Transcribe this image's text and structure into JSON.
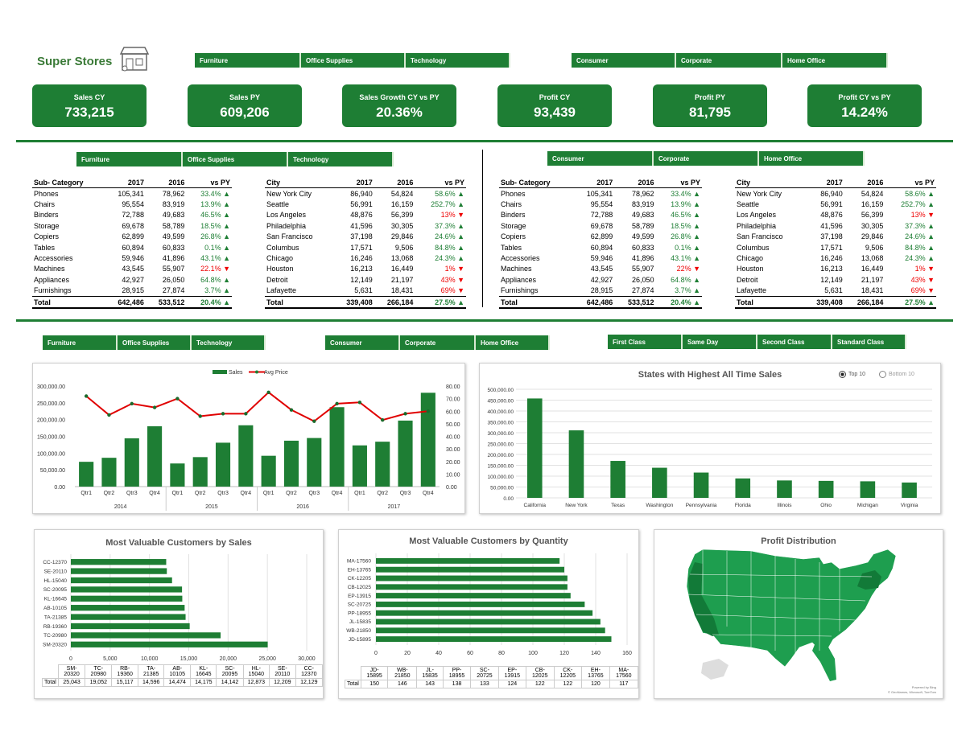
{
  "brand": {
    "title": "Super Stores",
    "icon": "store-icon"
  },
  "colors": {
    "accent": "#1e7e34",
    "line": "#e00000",
    "up": "#1e7e34",
    "down": "#e00000"
  },
  "category_slicer": [
    "Furniture",
    "Office Supplies",
    "Technology"
  ],
  "segment_slicer": [
    "Consumer",
    "Corporate",
    "Home Office"
  ],
  "shipmode_slicer": [
    "First Class",
    "Same Day",
    "Second Class",
    "Standard Class"
  ],
  "kpis": [
    {
      "label": "Sales CY",
      "value": "733,215"
    },
    {
      "label": "Sales PY",
      "value": "609,206"
    },
    {
      "label": "Sales Growth CY vs PY",
      "value": "20.36%"
    },
    {
      "label": "Profit CY",
      "value": "93,439"
    },
    {
      "label": "Profit PY",
      "value": "81,795"
    },
    {
      "label": "Profit CY vs PY",
      "value": "14.24%"
    }
  ],
  "subcat_table": {
    "headers": [
      "Sub- Category",
      "2017",
      "2016",
      "vs PY"
    ],
    "rows": [
      [
        "Phones",
        "105,341",
        "78,962",
        "33.4%",
        "up"
      ],
      [
        "Chairs",
        "95,554",
        "83,919",
        "13.9%",
        "up"
      ],
      [
        "Binders",
        "72,788",
        "49,683",
        "46.5%",
        "up"
      ],
      [
        "Storage",
        "69,678",
        "58,789",
        "18.5%",
        "up"
      ],
      [
        "Copiers",
        "62,899",
        "49,599",
        "26.8%",
        "up"
      ],
      [
        "Tables",
        "60,894",
        "60,833",
        "0.1%",
        "up"
      ],
      [
        "Accessories",
        "59,946",
        "41,896",
        "43.1%",
        "up"
      ],
      [
        "Machines",
        "43,545",
        "55,907",
        "22.1%",
        "down"
      ],
      [
        "Appliances",
        "42,927",
        "26,050",
        "64.8%",
        "up"
      ],
      [
        "Furnishings",
        "28,915",
        "27,874",
        "3.7%",
        "up"
      ]
    ],
    "total": [
      "Total",
      "642,486",
      "533,512",
      "20.4%",
      "up"
    ]
  },
  "subcat_table_b": {
    "headers": [
      "Sub- Category",
      "2017",
      "2016",
      "vs PY"
    ],
    "rows": [
      [
        "Phones",
        "105,341",
        "78,962",
        "33.4%",
        "up"
      ],
      [
        "Chairs",
        "95,554",
        "83,919",
        "13.9%",
        "up"
      ],
      [
        "Binders",
        "72,788",
        "49,683",
        "46.5%",
        "up"
      ],
      [
        "Storage",
        "69,678",
        "58,789",
        "18.5%",
        "up"
      ],
      [
        "Copiers",
        "62,899",
        "49,599",
        "26.8%",
        "up"
      ],
      [
        "Tables",
        "60,894",
        "60,833",
        "0.1%",
        "up"
      ],
      [
        "Accessories",
        "59,946",
        "41,896",
        "43.1%",
        "up"
      ],
      [
        "Machines",
        "43,545",
        "55,907",
        "22%",
        "down"
      ],
      [
        "Appliances",
        "42,927",
        "26,050",
        "64.8%",
        "up"
      ],
      [
        "Furnishings",
        "28,915",
        "27,874",
        "3.7%",
        "up"
      ]
    ],
    "total": [
      "Total",
      "642,486",
      "533,512",
      "20.4%",
      "up"
    ]
  },
  "city_table": {
    "headers": [
      "City",
      "2017",
      "2016",
      "vs PY"
    ],
    "rows": [
      [
        "New York City",
        "86,940",
        "54,824",
        "58.6%",
        "up"
      ],
      [
        "Seattle",
        "56,991",
        "16,159",
        "252.7%",
        "up"
      ],
      [
        "Los Angeles",
        "48,876",
        "56,399",
        "13%",
        "down"
      ],
      [
        "Philadelphia",
        "41,596",
        "30,305",
        "37.3%",
        "up"
      ],
      [
        "San Francisco",
        "37,198",
        "29,846",
        "24.6%",
        "up"
      ],
      [
        "Columbus",
        "17,571",
        "9,506",
        "84.8%",
        "up"
      ],
      [
        "Chicago",
        "16,246",
        "13,068",
        "24.3%",
        "up"
      ],
      [
        "Houston",
        "16,213",
        "16,449",
        "1%",
        "down"
      ],
      [
        "Detroit",
        "12,149",
        "21,197",
        "43%",
        "down"
      ],
      [
        "Lafayette",
        "5,631",
        "18,431",
        "69%",
        "down"
      ]
    ],
    "total": [
      "Total",
      "339,408",
      "266,184",
      "27.5%",
      "up"
    ]
  },
  "combo_chart": {
    "legend": [
      "Sales",
      "Avg Price"
    ],
    "y_left_ticks": [
      "300,000.00",
      "250,000.00",
      "200,000.00",
      "150,000.00",
      "100,000.00",
      "50,000.00",
      "0.00"
    ],
    "y_right_ticks": [
      "80.00",
      "70.00",
      "60.00",
      "50.00",
      "40.00",
      "30.00",
      "20.00",
      "10.00",
      "0.00"
    ],
    "quarters": [
      "Qtr1",
      "Qtr2",
      "Qtr3",
      "Qtr4",
      "Qtr1",
      "Qtr2",
      "Qtr3",
      "Qtr4",
      "Qtr1",
      "Qtr2",
      "Qtr3",
      "Qtr4",
      "Qtr1",
      "Qtr2",
      "Qtr3",
      "Qtr4"
    ],
    "years": [
      "2014",
      "2015",
      "2016",
      "2017"
    ]
  },
  "chart_data": [
    {
      "type": "bar",
      "title": "",
      "categories": [
        "2014 Qtr1",
        "2014 Qtr2",
        "2014 Qtr3",
        "2014 Qtr4",
        "2015 Qtr1",
        "2015 Qtr2",
        "2015 Qtr3",
        "2015 Qtr4",
        "2016 Qtr1",
        "2016 Qtr2",
        "2016 Qtr3",
        "2016 Qtr4",
        "2017 Qtr1",
        "2017 Qtr2",
        "2017 Qtr3",
        "2017 Qtr4"
      ],
      "series": [
        {
          "name": "Sales",
          "axis": "left",
          "values": [
            74000,
            86000,
            144000,
            180000,
            69000,
            88000,
            131000,
            183000,
            92000,
            137000,
            145000,
            237000,
            123000,
            134000,
            197000,
            280000
          ]
        },
        {
          "name": "Avg Price",
          "axis": "right",
          "type": "line",
          "values": [
            72,
            57,
            66,
            63,
            70,
            56,
            58,
            58,
            75,
            61,
            52,
            66,
            67,
            53,
            58,
            60
          ]
        }
      ],
      "ylim": [
        0,
        300000
      ],
      "y2lim": [
        0,
        80
      ],
      "legend": "top"
    },
    {
      "type": "bar",
      "title": "States with Highest All Time Sales",
      "options": [
        "Top 10",
        "Bottom 10"
      ],
      "selected": "Top 10",
      "y_ticks": [
        "500,000.00",
        "450,000.00",
        "400,000.00",
        "350,000.00",
        "300,000.00",
        "250,000.00",
        "200,000.00",
        "150,000.00",
        "100,000.00",
        "50,000.00",
        "0.00"
      ],
      "categories": [
        "California",
        "New York",
        "Texas",
        "Washington",
        "Pennsylvania",
        "Florida",
        "Illinois",
        "Ohio",
        "Michigan",
        "Virginia"
      ],
      "values": [
        457688,
        310876,
        170188,
        138641,
        116512,
        89474,
        80166,
        78258,
        76270,
        70637
      ],
      "ylim": [
        0,
        500000
      ]
    },
    {
      "type": "bar",
      "orientation": "horizontal",
      "title": "Most Valuable Customers by Sales",
      "categories": [
        "SM-20320",
        "TC-20980",
        "RB-19360",
        "TA-21385",
        "AB-10105",
        "KL-16645",
        "SC-20095",
        "HL-15040",
        "SE-20110",
        "CC-12370"
      ],
      "values": [
        25043,
        19052,
        15117,
        14596,
        14474,
        14175,
        14142,
        12873,
        12209,
        12129
      ],
      "x_ticks": [
        "0",
        "5,000",
        "10,000",
        "15,000",
        "20,000",
        "25,000",
        "30,000"
      ],
      "xlim": [
        0,
        30000
      ],
      "table_row_label": "Total"
    },
    {
      "type": "bar",
      "orientation": "horizontal",
      "title": "Most Valuable Customers by Quantity",
      "categories": [
        "JD-15895",
        "WB-21850",
        "JL-15835",
        "PP-18955",
        "SC-20725",
        "EP-13915",
        "CB-12025",
        "CK-12205",
        "EH-13765",
        "MA-17560"
      ],
      "values": [
        150,
        146,
        143,
        138,
        133,
        124,
        122,
        122,
        120,
        117
      ],
      "x_ticks": [
        "0",
        "20",
        "40",
        "60",
        "80",
        "100",
        "120",
        "140",
        "160"
      ],
      "xlim": [
        0,
        160
      ],
      "table_row_label": "Total"
    }
  ],
  "map": {
    "title": "Profit Distribution",
    "credit1": "Powered by Bing",
    "credit2": "© GeoNames, Microsoft, TomTom"
  }
}
